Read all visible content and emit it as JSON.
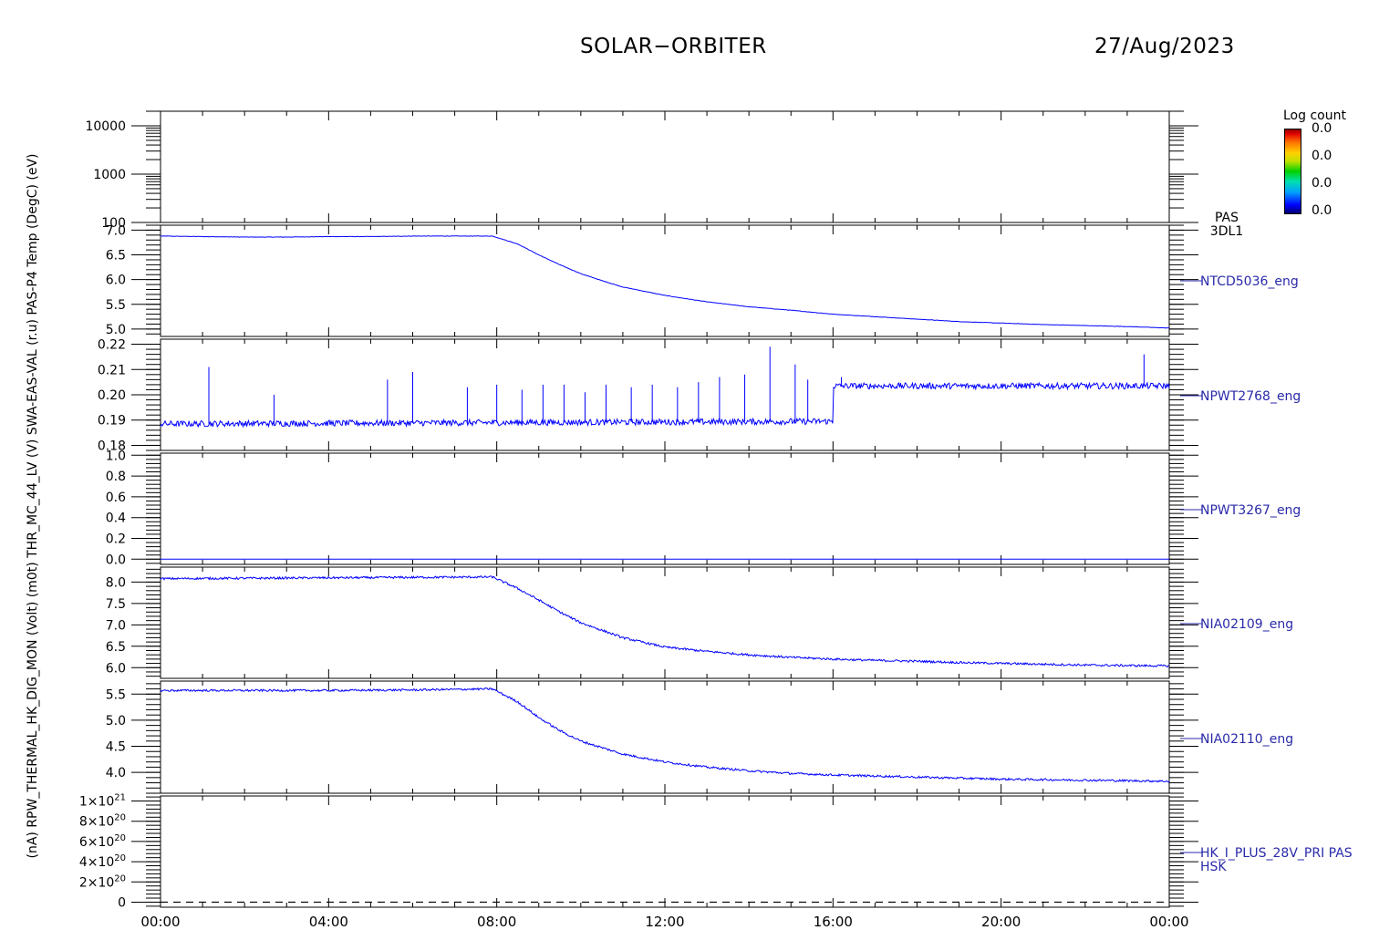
{
  "header": {
    "title": "SOLAR−ORBITER",
    "date": "27/Aug/2023"
  },
  "colorbar": {
    "title": "Log count",
    "tick_labels": [
      "0.0",
      "0.0",
      "0.0",
      "0.0"
    ]
  },
  "left_axis_label": "(nA)  RPW_THERMAL_HK_DIG_MON (Volt)  (m0t)  THR_MC_44_LV (V)  SWA-EAS-VAL (r.u)  PAS-P4 Temp (DegC)  (eV)",
  "time_axis": {
    "ticks": [
      "00:00",
      "04:00",
      "08:00",
      "12:00",
      "16:00",
      "20:00",
      "00:00"
    ],
    "range_hours": [
      0,
      24
    ]
  },
  "colors": {
    "data": "#0000ff",
    "right_label": "#2a2aaa",
    "axis": "#000000"
  },
  "chart_data": [
    {
      "type": "heatmap",
      "panel_label": [
        "PAS",
        "3DL1"
      ],
      "yscale": "log",
      "ylim": [
        100,
        20000
      ],
      "yticks": [
        100,
        1000,
        10000
      ],
      "ytick_labels": [
        "100",
        "1000",
        "10000"
      ],
      "values": []
    },
    {
      "type": "line",
      "panel_label": [
        "NTCD5036_eng"
      ],
      "ylim": [
        4.85,
        7.1
      ],
      "yticks": [
        5.0,
        5.5,
        6.0,
        6.5,
        7.0
      ],
      "ytick_labels": [
        "5.0",
        "5.5",
        "6.0",
        "6.5",
        "7.0"
      ],
      "x": [
        0,
        1,
        2,
        3,
        4,
        5,
        6,
        7,
        7.9,
        8.5,
        9,
        9.5,
        10,
        10.5,
        11,
        12,
        13,
        14,
        15,
        16,
        17,
        18,
        19,
        20,
        21,
        22,
        23,
        24
      ],
      "y": [
        6.88,
        6.87,
        6.86,
        6.86,
        6.87,
        6.87,
        6.88,
        6.88,
        6.88,
        6.72,
        6.5,
        6.3,
        6.12,
        5.98,
        5.85,
        5.68,
        5.55,
        5.45,
        5.38,
        5.3,
        5.25,
        5.2,
        5.15,
        5.12,
        5.09,
        5.07,
        5.05,
        5.02
      ],
      "noise": 0.004
    },
    {
      "type": "line",
      "panel_label": [
        "NPWT2768_eng"
      ],
      "ylim": [
        0.178,
        0.222
      ],
      "yticks": [
        0.18,
        0.19,
        0.2,
        0.21,
        0.22
      ],
      "ytick_labels": [
        "0.18",
        "0.19",
        "0.20",
        "0.21",
        "0.22"
      ],
      "x": [
        0,
        16,
        16.001,
        24
      ],
      "y": [
        0.1885,
        0.1895,
        0.2035,
        0.2035
      ],
      "noise": 0.0012,
      "spikes": [
        {
          "x": 1.15,
          "y": 0.211
        },
        {
          "x": 2.7,
          "y": 0.2
        },
        {
          "x": 5.4,
          "y": 0.206
        },
        {
          "x": 6.0,
          "y": 0.209
        },
        {
          "x": 7.3,
          "y": 0.203
        },
        {
          "x": 8.0,
          "y": 0.204
        },
        {
          "x": 8.6,
          "y": 0.202
        },
        {
          "x": 9.1,
          "y": 0.204
        },
        {
          "x": 9.6,
          "y": 0.204
        },
        {
          "x": 10.1,
          "y": 0.201
        },
        {
          "x": 10.6,
          "y": 0.204
        },
        {
          "x": 11.2,
          "y": 0.203
        },
        {
          "x": 11.7,
          "y": 0.204
        },
        {
          "x": 12.3,
          "y": 0.203
        },
        {
          "x": 12.8,
          "y": 0.205
        },
        {
          "x": 13.3,
          "y": 0.207
        },
        {
          "x": 13.9,
          "y": 0.208
        },
        {
          "x": 14.5,
          "y": 0.219
        },
        {
          "x": 15.1,
          "y": 0.212
        },
        {
          "x": 15.4,
          "y": 0.206
        },
        {
          "x": 16.2,
          "y": 0.207
        },
        {
          "x": 23.4,
          "y": 0.216
        }
      ]
    },
    {
      "type": "line",
      "panel_label": [
        "NPWT3267_eng"
      ],
      "ylim": [
        -0.05,
        1.02
      ],
      "yticks": [
        0,
        0.2,
        0.4,
        0.6,
        0.8,
        1.0
      ],
      "ytick_labels": [
        "0.0",
        "0.2",
        "0.4",
        "0.6",
        "0.8",
        "1.0"
      ],
      "x": [
        0,
        24
      ],
      "y": [
        0,
        0
      ],
      "noise": 0
    },
    {
      "type": "line",
      "panel_label": [
        "NIA02109_eng"
      ],
      "ylim": [
        5.75,
        8.35
      ],
      "yticks": [
        6.0,
        6.5,
        7.0,
        7.5,
        8.0
      ],
      "ytick_labels": [
        "6.0",
        "6.5",
        "7.0",
        "7.5",
        "8.0"
      ],
      "x": [
        0,
        2,
        4,
        6,
        7.9,
        8.5,
        9,
        9.5,
        10,
        11,
        12,
        13,
        14,
        15,
        16,
        17,
        18,
        19,
        20,
        21,
        22,
        23,
        24
      ],
      "y": [
        8.08,
        8.09,
        8.1,
        8.11,
        8.12,
        7.85,
        7.58,
        7.3,
        7.05,
        6.7,
        6.48,
        6.38,
        6.3,
        6.24,
        6.2,
        6.17,
        6.15,
        6.12,
        6.1,
        6.08,
        6.06,
        6.05,
        6.04
      ],
      "noise": 0.025
    },
    {
      "type": "line",
      "panel_label": [
        "NIA02110_eng"
      ],
      "ylim": [
        3.6,
        5.75
      ],
      "yticks": [
        4.0,
        4.5,
        5.0,
        5.5
      ],
      "ytick_labels": [
        "4.0",
        "4.5",
        "5.0",
        "5.5"
      ],
      "x": [
        0,
        2,
        4,
        6,
        7.9,
        8.5,
        9,
        9.5,
        10,
        11,
        12,
        13,
        14,
        15,
        16,
        17,
        18,
        19,
        20,
        21,
        22,
        23,
        24
      ],
      "y": [
        5.57,
        5.57,
        5.57,
        5.58,
        5.6,
        5.35,
        5.05,
        4.8,
        4.6,
        4.35,
        4.2,
        4.1,
        4.03,
        3.98,
        3.95,
        3.93,
        3.91,
        3.89,
        3.87,
        3.86,
        3.85,
        3.84,
        3.83
      ],
      "noise": 0.02
    },
    {
      "type": "line",
      "panel_label": [
        "HK_I_PLUS_28V_PRI PAS",
        "HSK"
      ],
      "ylim": [
        -5e+19,
        1.05e+21
      ],
      "yticks": [
        0,
        2e+20,
        4e+20,
        6e+20,
        8e+20,
        1e+21
      ],
      "ytick_labels": [
        {
          "base": "0",
          "exp": ""
        },
        {
          "base": "2×10",
          "exp": "20"
        },
        {
          "base": "4×10",
          "exp": "20"
        },
        {
          "base": "6×10",
          "exp": "20"
        },
        {
          "base": "8×10",
          "exp": "20"
        },
        {
          "base": "1×10",
          "exp": "21"
        }
      ],
      "x": [
        0,
        24
      ],
      "y": [
        0,
        0
      ],
      "dashed": true,
      "line_color": "#000000",
      "noise": 0
    }
  ]
}
